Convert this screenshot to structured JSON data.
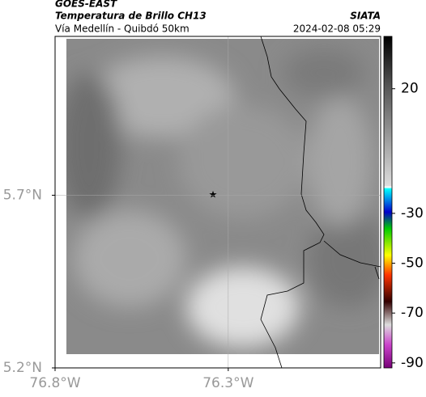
{
  "header": {
    "title": "GOES-EAST",
    "subtitle": "Temperatura de Brillo CH13",
    "route": "Vía Medellín - Quibdó 50km",
    "source": "SIATA",
    "timestamp": "2024-02-08 05:29"
  },
  "map": {
    "xlim": [
      -76.8,
      -75.86
    ],
    "ylim": [
      5.2,
      6.16
    ],
    "xticks": [
      {
        "value": -76.8,
        "label": "76.8°W"
      },
      {
        "value": -76.3,
        "label": "76.3°W"
      }
    ],
    "yticks": [
      {
        "value": 5.2,
        "label": "5.2°N"
      },
      {
        "value": 5.7,
        "label": "5.7°N"
      }
    ]
  },
  "colorbar": {
    "lim": [
      -92,
      41
    ],
    "ticks": [
      20,
      -30,
      -50,
      -70,
      -90
    ]
  }
}
